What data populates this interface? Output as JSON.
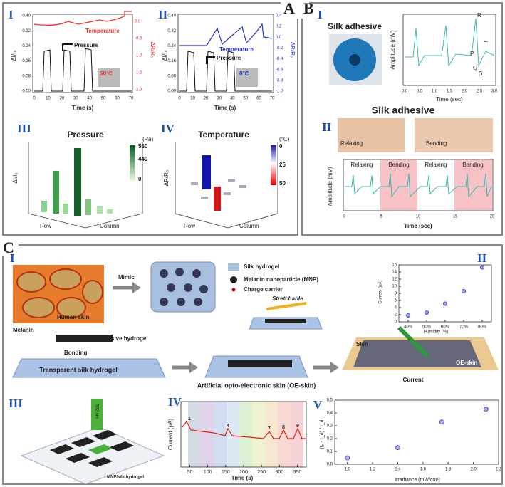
{
  "panel_a": {
    "label": "A",
    "i": {
      "label": "I",
      "temperature": "Temperature",
      "pressure": "Pressure",
      "inset": "50°C",
      "y_label": "ΔI/I₀",
      "y2_label": "ΔR/R₀",
      "x_label": "Time (s)",
      "xticks": [
        "0",
        "10",
        "20",
        "30",
        "40",
        "50",
        "60",
        "70"
      ],
      "yticks": [
        "0.00",
        "0.08",
        "0.16",
        "0.24",
        "0.32",
        "0.40"
      ],
      "y2ticks": [
        "0.0",
        "-0.5",
        "-1.0",
        "-1.5",
        "-2.0"
      ]
    },
    "ii": {
      "label": "II",
      "temperature": "Temperature",
      "pressure": "Pressure",
      "inset": "0°C",
      "y_label": "ΔI/I₀",
      "y2_label": "ΔR/R₀",
      "x_label": "Time (s)",
      "xticks": [
        "0",
        "10",
        "20",
        "30",
        "40",
        "50",
        "60",
        "70"
      ],
      "yticks": [
        "0.00",
        "0.08",
        "0.16",
        "0.24",
        "0.32",
        "0.40"
      ],
      "y2ticks": [
        "0.4",
        "0.2",
        "0.0",
        "-0.2",
        "-0.4",
        "-0.6",
        "-0.8",
        "-1.0"
      ]
    },
    "iii": {
      "label": "III",
      "title": "Pressure",
      "unit": "(Pa)",
      "scale": [
        "560",
        "440",
        "0"
      ],
      "z_label": "ΔI/I₀",
      "row": "Row",
      "column": "Column"
    },
    "iv": {
      "label": "IV",
      "title": "Temperature",
      "unit": "(°C)",
      "scale": [
        "0",
        "25",
        "50"
      ],
      "z_label": "ΔR/R₀",
      "row": "Row",
      "column": "Column"
    }
  },
  "panel_b": {
    "label": "B",
    "i": {
      "label": "I",
      "title": "Silk adhesive",
      "y_label": "Amplitude (mV)",
      "x_label": "Time (sec)",
      "peaks": [
        "P",
        "Q",
        "R",
        "S",
        "T"
      ],
      "xticks": [
        "0.0",
        "0.5",
        "1.0",
        "1.5",
        "2.0",
        "2.5",
        "3.0"
      ]
    },
    "ii": {
      "label": "II",
      "title": "Silk adhesive",
      "photo_left": "Relaxing",
      "photo_right": "Bending",
      "phases": [
        "Relaxing",
        "Bending",
        "Relaxing",
        "Bending"
      ],
      "y_label": "Amplitude (mV)",
      "x_label": "Time (sec)",
      "xticks": [
        "0",
        "5",
        "10",
        "15",
        "20"
      ]
    }
  },
  "panel_c": {
    "label": "C",
    "i": {
      "label": "I",
      "mimic": "Mimic",
      "human_skin": "Human skin",
      "melanin": "Melanin",
      "legend": [
        "Silk hydrogel",
        "Melanin nanoparticle (MNP)",
        "Charge carrier"
      ],
      "stretchable": "Stretchable",
      "photo_hydrogel": "Photo-responsive hydrogel",
      "bonding": "Bonding",
      "transparent": "Transparent silk hydrogel",
      "caption": "Artificial opto-electronic skin (OE-skin)",
      "skin": "Skin",
      "oe_skin": "OE-skin",
      "current": "Current"
    },
    "ii": {
      "label": "II",
      "y_label": "Current (μA)",
      "x_label": "Humidity (%)",
      "x": [
        40,
        50,
        60,
        70,
        80
      ],
      "values": [
        1.8,
        2.6,
        5.1,
        8.6,
        15.3
      ],
      "xlim": [
        35,
        85
      ],
      "ylim": [
        0,
        16
      ],
      "xticks": [
        {
          "value": 40,
          "label": "40%"
        },
        {
          "value": 50,
          "label": "50%"
        },
        {
          "value": 60,
          "label": "60%"
        },
        {
          "value": 70,
          "label": "70%"
        },
        {
          "value": 80,
          "label": "80%"
        }
      ],
      "yticks": [
        0,
        2,
        4,
        6,
        8,
        10,
        12,
        14,
        16
      ]
    },
    "iii": {
      "label": "III",
      "laser": "532 nm",
      "material": "MNP/silk hydrogel"
    },
    "iv": {
      "label": "IV",
      "y_label": "Current (μA)",
      "x_label": "Time (s)",
      "peaks": [
        "1",
        "4",
        "7",
        "8",
        "9"
      ],
      "xlim": [
        25,
        375
      ],
      "xticks": [
        50,
        100,
        150,
        200,
        250,
        300,
        350
      ]
    },
    "v": {
      "label": "V",
      "y_label": "(Iₚ - I_d) / I_d",
      "x_label": "Irradiance (mW/cm²)",
      "x": [
        1.0,
        1.4,
        1.75,
        2.1
      ],
      "values": [
        0.05,
        0.13,
        0.33,
        0.43
      ],
      "xlim": [
        0.9,
        2.2
      ],
      "ylim": [
        0,
        0.5
      ],
      "xticks": [
        {
          "value": 1,
          "label": "1.0"
        },
        1.2,
        1.4,
        1.6,
        1.8,
        {
          "value": 2,
          "label": "2.0"
        },
        2.2
      ],
      "yticks": [
        {
          "value": 0,
          "label": "0.0"
        },
        0.1,
        0.2,
        0.3,
        0.4,
        0.5
      ]
    }
  }
}
